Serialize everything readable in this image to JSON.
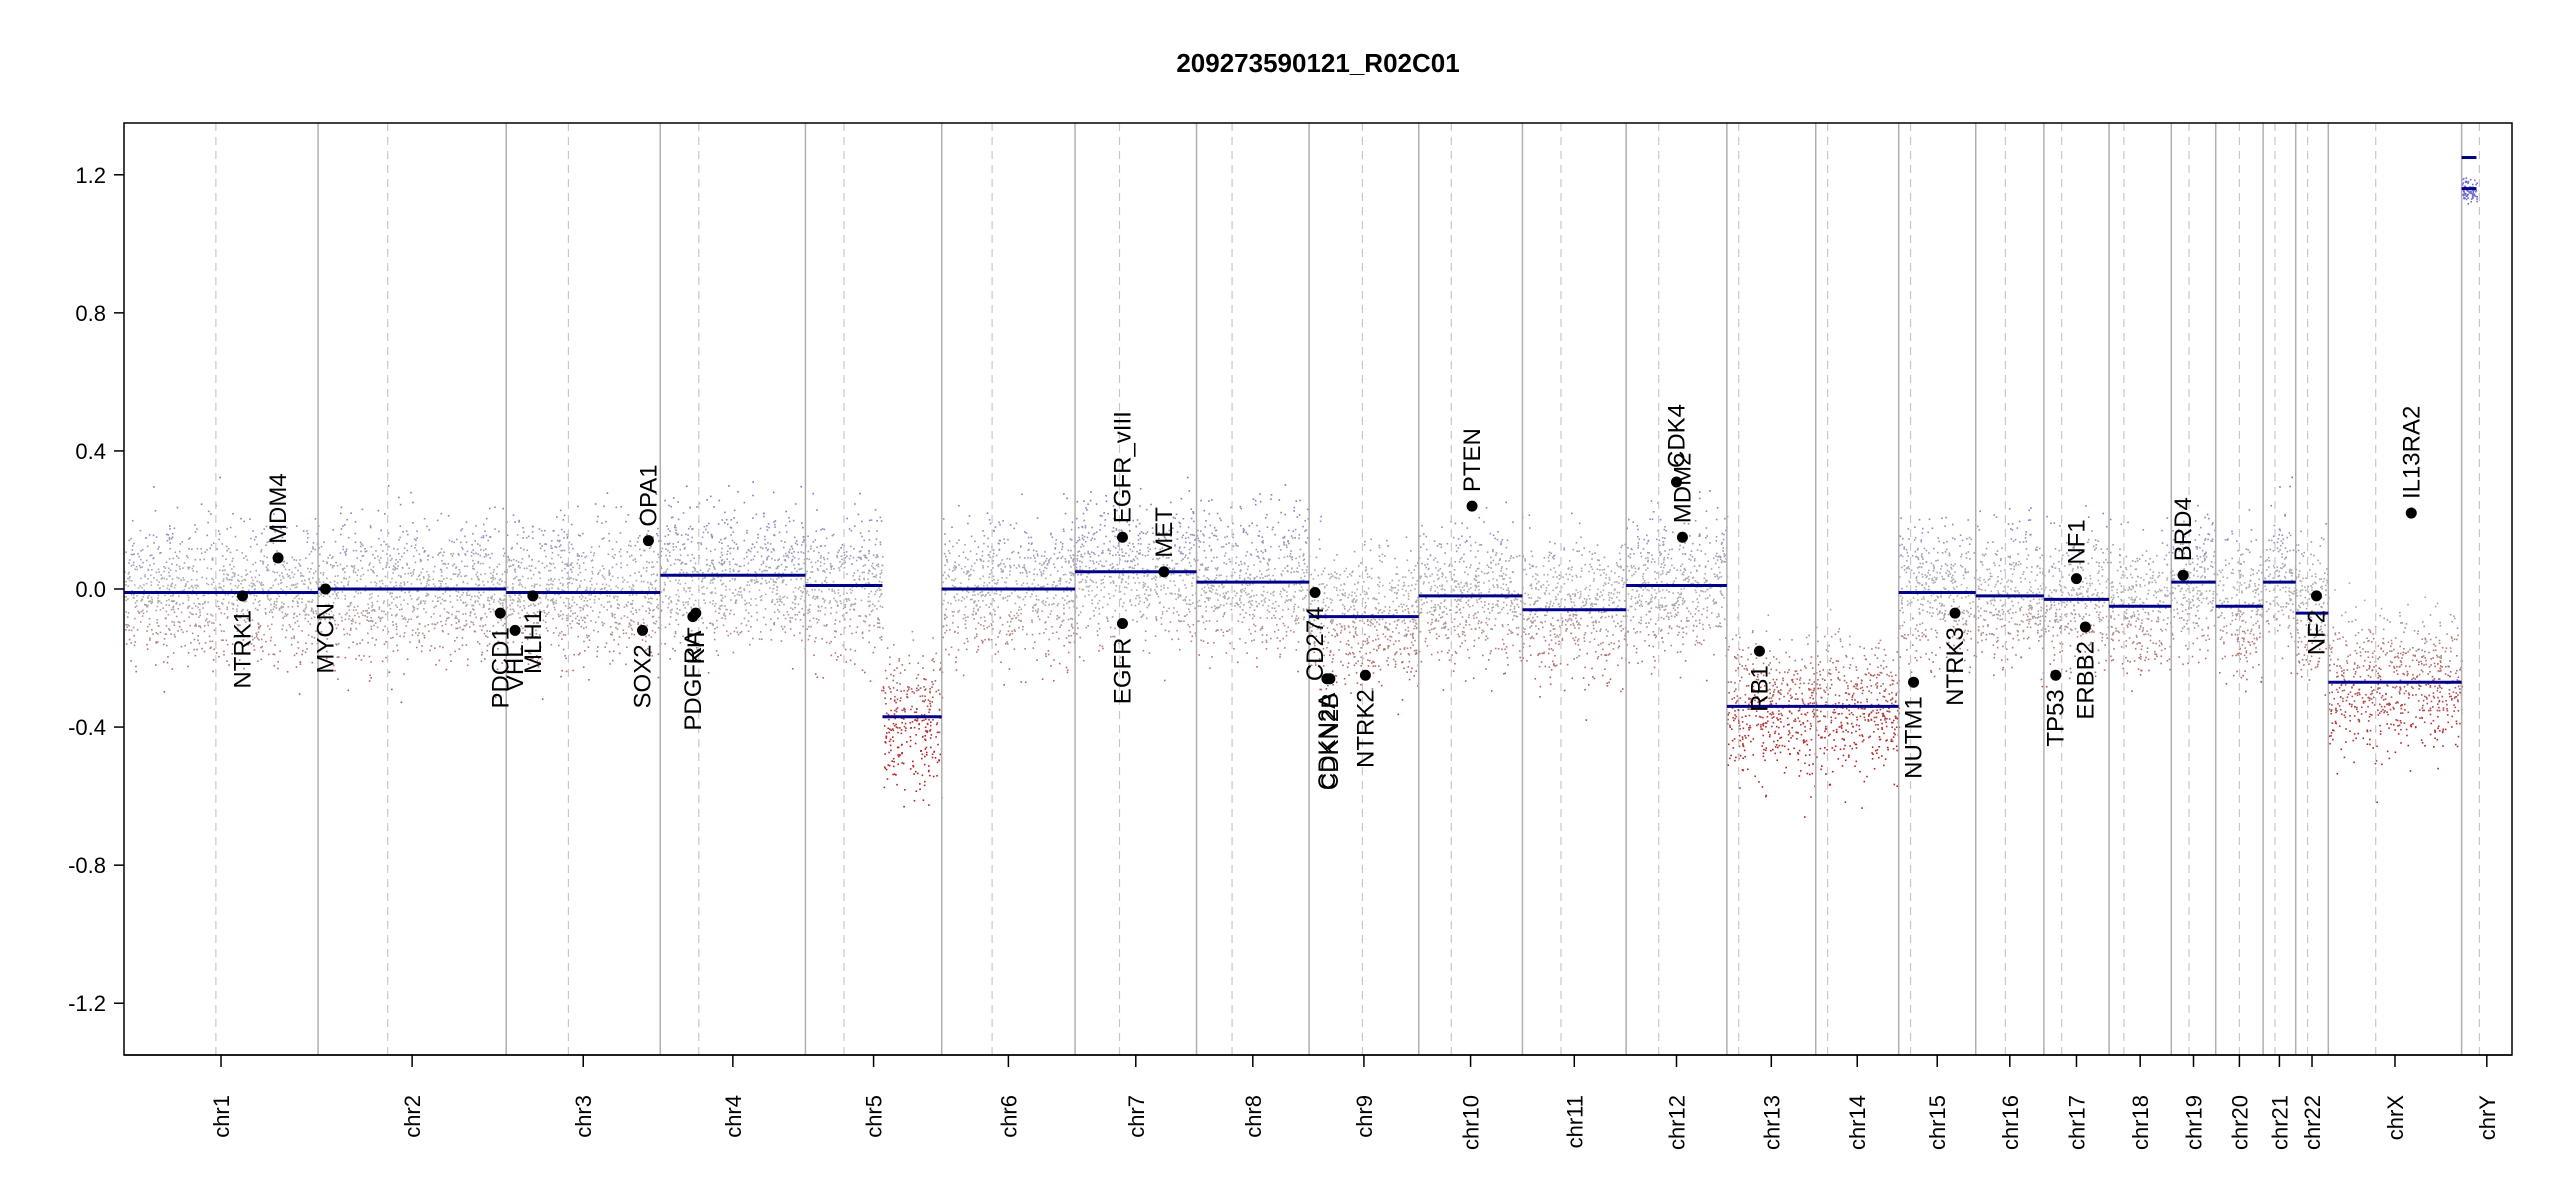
{
  "chart_data": {
    "type": "scatter",
    "title": "209273590121_R02C01",
    "xlabel": "",
    "ylabel": "",
    "ylim": [
      -1.35,
      1.35
    ],
    "y_ticks": [
      -1.2,
      -0.8,
      -0.4,
      0.0,
      0.4,
      0.8,
      1.2
    ],
    "y_tick_labels": [
      "-1.2",
      "-0.8",
      "-0.4",
      "0.0",
      "0.4",
      "0.8",
      "1.2"
    ],
    "grid": false,
    "colors": {
      "gain": "#6a6ad0",
      "neutral": "#b0b0b0",
      "loss": "#b22222",
      "segment": "#00008b",
      "gene_point": "#000000"
    },
    "chromosomes": [
      {
        "name": "chr1",
        "start": 0.0,
        "end": 6.55,
        "centromere": 3.1,
        "segments": [
          {
            "start": 0.0,
            "end": 6.55,
            "value": -0.01
          }
        ]
      },
      {
        "name": "chr2",
        "start": 6.55,
        "end": 12.9,
        "centromere": 8.9,
        "segments": [
          {
            "start": 6.55,
            "end": 12.9,
            "value": 0.0
          }
        ]
      },
      {
        "name": "chr3",
        "start": 12.9,
        "end": 18.1,
        "centromere": 15.0,
        "segments": [
          {
            "start": 12.9,
            "end": 18.1,
            "value": -0.01
          }
        ]
      },
      {
        "name": "chr4",
        "start": 18.1,
        "end": 23.0,
        "centromere": 19.4,
        "segments": [
          {
            "start": 18.1,
            "end": 23.0,
            "value": 0.04
          }
        ]
      },
      {
        "name": "chr5",
        "start": 23.0,
        "end": 27.6,
        "centromere": 24.3,
        "segments": [
          {
            "start": 23.0,
            "end": 25.6,
            "value": 0.01
          },
          {
            "start": 25.6,
            "end": 27.6,
            "value": -0.37
          }
        ]
      },
      {
        "name": "chr6",
        "start": 27.6,
        "end": 32.1,
        "centromere": 29.3,
        "segments": [
          {
            "start": 27.6,
            "end": 32.1,
            "value": 0.0
          }
        ]
      },
      {
        "name": "chr7",
        "start": 32.1,
        "end": 36.2,
        "centromere": 33.6,
        "segments": [
          {
            "start": 32.1,
            "end": 36.2,
            "value": 0.05
          }
        ]
      },
      {
        "name": "chr8",
        "start": 36.2,
        "end": 40.0,
        "centromere": 37.4,
        "segments": [
          {
            "start": 36.2,
            "end": 40.0,
            "value": 0.02
          }
        ]
      },
      {
        "name": "chr9",
        "start": 40.0,
        "end": 43.7,
        "centromere": 41.8,
        "segments": [
          {
            "start": 40.0,
            "end": 43.7,
            "value": -0.08
          }
        ]
      },
      {
        "name": "chr10",
        "start": 43.7,
        "end": 47.2,
        "centromere": 44.8,
        "segments": [
          {
            "start": 43.7,
            "end": 47.2,
            "value": -0.02
          }
        ]
      },
      {
        "name": "chr11",
        "start": 47.2,
        "end": 50.7,
        "centromere": 48.5,
        "segments": [
          {
            "start": 47.2,
            "end": 50.7,
            "value": -0.06
          }
        ]
      },
      {
        "name": "chr12",
        "start": 50.7,
        "end": 54.1,
        "centromere": 51.8,
        "segments": [
          {
            "start": 50.7,
            "end": 54.1,
            "value": 0.01
          }
        ]
      },
      {
        "name": "chr13",
        "start": 54.1,
        "end": 57.1,
        "centromere": 54.5,
        "segments": [
          {
            "start": 54.1,
            "end": 57.1,
            "value": -0.34
          }
        ]
      },
      {
        "name": "chr14",
        "start": 57.1,
        "end": 59.9,
        "centromere": 57.5,
        "segments": [
          {
            "start": 57.1,
            "end": 59.9,
            "value": -0.34
          }
        ]
      },
      {
        "name": "chr15",
        "start": 59.9,
        "end": 62.5,
        "centromere": 60.3,
        "segments": [
          {
            "start": 59.9,
            "end": 62.5,
            "value": -0.01
          }
        ]
      },
      {
        "name": "chr16",
        "start": 62.5,
        "end": 64.8,
        "centromere": 63.5,
        "segments": [
          {
            "start": 62.5,
            "end": 64.8,
            "value": -0.02
          }
        ]
      },
      {
        "name": "chr17",
        "start": 64.8,
        "end": 67.0,
        "centromere": 65.4,
        "segments": [
          {
            "start": 64.8,
            "end": 67.0,
            "value": -0.03
          }
        ]
      },
      {
        "name": "chr18",
        "start": 67.0,
        "end": 69.1,
        "centromere": 67.5,
        "segments": [
          {
            "start": 67.0,
            "end": 69.1,
            "value": -0.05
          }
        ]
      },
      {
        "name": "chr19",
        "start": 69.1,
        "end": 70.6,
        "centromere": 69.7,
        "segments": [
          {
            "start": 69.1,
            "end": 70.6,
            "value": 0.02
          }
        ]
      },
      {
        "name": "chr20",
        "start": 70.6,
        "end": 72.2,
        "centromere": 71.4,
        "segments": [
          {
            "start": 70.6,
            "end": 72.2,
            "value": -0.05
          }
        ]
      },
      {
        "name": "chr21",
        "start": 72.2,
        "end": 73.3,
        "centromere": 72.6,
        "segments": [
          {
            "start": 72.2,
            "end": 73.3,
            "value": 0.02
          }
        ]
      },
      {
        "name": "chr22",
        "start": 73.3,
        "end": 74.4,
        "centromere": 73.7,
        "segments": [
          {
            "start": 73.3,
            "end": 74.4,
            "value": -0.07
          }
        ]
      },
      {
        "name": "chrX",
        "start": 74.4,
        "end": 78.9,
        "centromere": 76.0,
        "segments": [
          {
            "start": 74.4,
            "end": 78.9,
            "value": -0.27
          }
        ]
      },
      {
        "name": "chrY",
        "start": 78.9,
        "end": 80.6,
        "centromere": 79.5,
        "segments": [
          {
            "start": 78.9,
            "end": 79.4,
            "value": 1.16
          },
          {
            "start": 78.9,
            "end": 79.4,
            "value": 1.25
          }
        ]
      }
    ],
    "genes": [
      {
        "name": "NTRK1",
        "x": 4.0,
        "value": -0.02,
        "label_side": "below"
      },
      {
        "name": "MDM4",
        "x": 5.2,
        "value": 0.09,
        "label_side": "above"
      },
      {
        "name": "MYCN",
        "x": 6.8,
        "value": 0.0,
        "label_side": "below"
      },
      {
        "name": "PDCD1",
        "x": 12.7,
        "value": -0.07,
        "label_side": "below"
      },
      {
        "name": "VHL",
        "x": 13.2,
        "value": -0.12,
        "label_side": "below"
      },
      {
        "name": "MLH1",
        "x": 13.8,
        "value": -0.02,
        "label_side": "below"
      },
      {
        "name": "SOX2",
        "x": 17.5,
        "value": -0.12,
        "label_side": "below"
      },
      {
        "name": "OPA1",
        "x": 17.7,
        "value": 0.14,
        "label_side": "above"
      },
      {
        "name": "PDGFRA",
        "x": 19.2,
        "value": -0.08,
        "label_side": "below"
      },
      {
        "name": "KIT",
        "x": 19.3,
        "value": -0.07,
        "label_side": "below"
      },
      {
        "name": "EGFR",
        "x": 33.7,
        "value": -0.1,
        "label_side": "below"
      },
      {
        "name": "EGFR_vIII",
        "x": 33.7,
        "value": 0.15,
        "label_side": "above"
      },
      {
        "name": "MET",
        "x": 35.1,
        "value": 0.05,
        "label_side": "above"
      },
      {
        "name": "CD274",
        "x": 40.2,
        "value": -0.01,
        "label_side": "below"
      },
      {
        "name": "CDKN2A",
        "x": 40.6,
        "value": -0.26,
        "label_side": "below"
      },
      {
        "name": "CDKN2B",
        "x": 40.7,
        "value": -0.26,
        "label_side": "below"
      },
      {
        "name": "NTRK2",
        "x": 41.9,
        "value": -0.25,
        "label_side": "below"
      },
      {
        "name": "PTEN",
        "x": 45.5,
        "value": 0.24,
        "label_side": "above"
      },
      {
        "name": "CDK4",
        "x": 52.4,
        "value": 0.31,
        "label_side": "above"
      },
      {
        "name": "MDM2",
        "x": 52.6,
        "value": 0.15,
        "label_side": "above"
      },
      {
        "name": "RB1",
        "x": 55.2,
        "value": -0.18,
        "label_side": "below"
      },
      {
        "name": "NUTM1",
        "x": 60.4,
        "value": -0.27,
        "label_side": "below"
      },
      {
        "name": "NTRK3",
        "x": 61.8,
        "value": -0.07,
        "label_side": "below"
      },
      {
        "name": "TP53",
        "x": 65.2,
        "value": -0.25,
        "label_side": "below"
      },
      {
        "name": "NF1",
        "x": 65.9,
        "value": 0.03,
        "label_side": "above"
      },
      {
        "name": "ERBB2",
        "x": 66.2,
        "value": -0.11,
        "label_side": "below"
      },
      {
        "name": "BRD4",
        "x": 69.5,
        "value": 0.04,
        "label_side": "above"
      },
      {
        "name": "NF2",
        "x": 74.0,
        "value": -0.02,
        "label_side": "below"
      },
      {
        "name": "IL13RA2",
        "x": 77.2,
        "value": 0.22,
        "label_side": "above"
      }
    ]
  }
}
